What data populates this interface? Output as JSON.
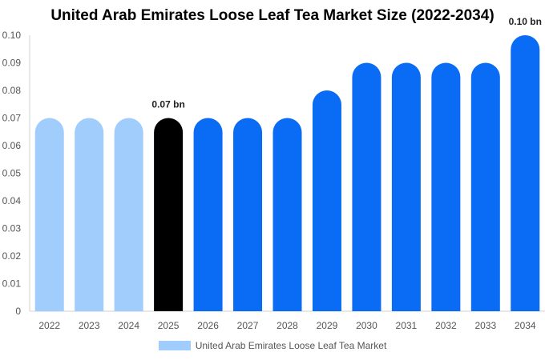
{
  "chart_data": {
    "type": "bar",
    "title": "United Arab Emirates Loose Leaf Tea Market Size (2022-2034)",
    "categories": [
      "2022",
      "2023",
      "2024",
      "2025",
      "2026",
      "2027",
      "2028",
      "2029",
      "2030",
      "2031",
      "2032",
      "2033",
      "2034"
    ],
    "series": [
      {
        "name": "United Arab Emirates Loose Leaf Tea Market",
        "values": [
          0.07,
          0.07,
          0.07,
          0.07,
          0.07,
          0.07,
          0.07,
          0.08,
          0.09,
          0.09,
          0.09,
          0.09,
          0.1
        ]
      }
    ],
    "ylim": [
      0,
      0.1
    ],
    "yticks": [
      "0",
      "0.01",
      "0.02",
      "0.03",
      "0.04",
      "0.05",
      "0.06",
      "0.07",
      "0.08",
      "0.09",
      "0.10"
    ],
    "annotations": [
      {
        "category": "2025",
        "text": "0.07 bn"
      },
      {
        "category": "2034",
        "text": "0.10 bn"
      }
    ],
    "bar_colors": [
      "#a0cdfb",
      "#a0cdfb",
      "#a0cdfb",
      "#000000",
      "#0a6cf5",
      "#0a6cf5",
      "#0a6cf5",
      "#0a6cf5",
      "#0a6cf5",
      "#0a6cf5",
      "#0a6cf5",
      "#0a6cf5",
      "#0a6cf5"
    ],
    "legend_color": "#a0cdfb",
    "legend_position": "bottom-center",
    "grid": false
  }
}
